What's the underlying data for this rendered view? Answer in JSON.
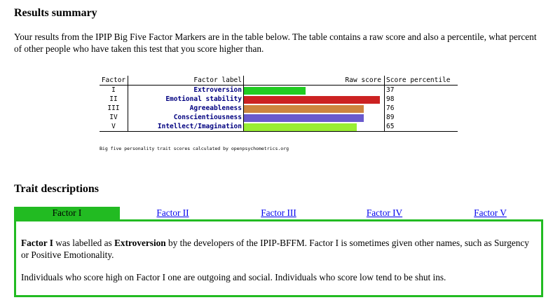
{
  "results": {
    "title": "Results summary",
    "intro": "Your results from the IPIP Big Five Factor Markers are in the table below. The table contains a raw score and also a percentile, what percent of other people who have taken this test that you score higher than.",
    "caption": "Big five personality trait scores calculated by openpsychometrics.org"
  },
  "chart_data": {
    "type": "bar",
    "headers": {
      "factor": "Factor",
      "label": "Factor label",
      "raw": "Raw score",
      "percentile": "Score percentile"
    },
    "rows": [
      {
        "factor": "I",
        "label": "Extroversion",
        "raw": 0.45,
        "percentile": "37",
        "color": "#22cc22"
      },
      {
        "factor": "II",
        "label": "Emotional stability",
        "raw": 0.99,
        "percentile": "98",
        "color": "#cc2222"
      },
      {
        "factor": "III",
        "label": "Agreeableness",
        "raw": 0.87,
        "percentile": "76",
        "color": "#cd853f"
      },
      {
        "factor": "IV",
        "label": "Conscientiousness",
        "raw": 0.87,
        "percentile": "89",
        "color": "#6a5acd"
      },
      {
        "factor": "V",
        "label": "Intellect/Imagination",
        "raw": 0.82,
        "percentile": "65",
        "color": "#99ee33"
      }
    ]
  },
  "traits": {
    "title": "Trait descriptions",
    "tabs": [
      "Factor I",
      "Factor II",
      "Factor III",
      "Factor IV",
      "Factor V"
    ],
    "active_tab": 0,
    "panel": {
      "p1_lead": "Factor I",
      "p1_mid": " was labelled as ",
      "p1_name": "Extroversion",
      "p1_rest": " by the developers of the IPIP-BFFM. Factor I is sometimes given other names, such as Surgency or Positive Emotionality.",
      "p2": "Individuals who score high on Factor I one are outgoing and social. Individuals who score low tend to be shut ins."
    },
    "accent": "#22bb22"
  }
}
